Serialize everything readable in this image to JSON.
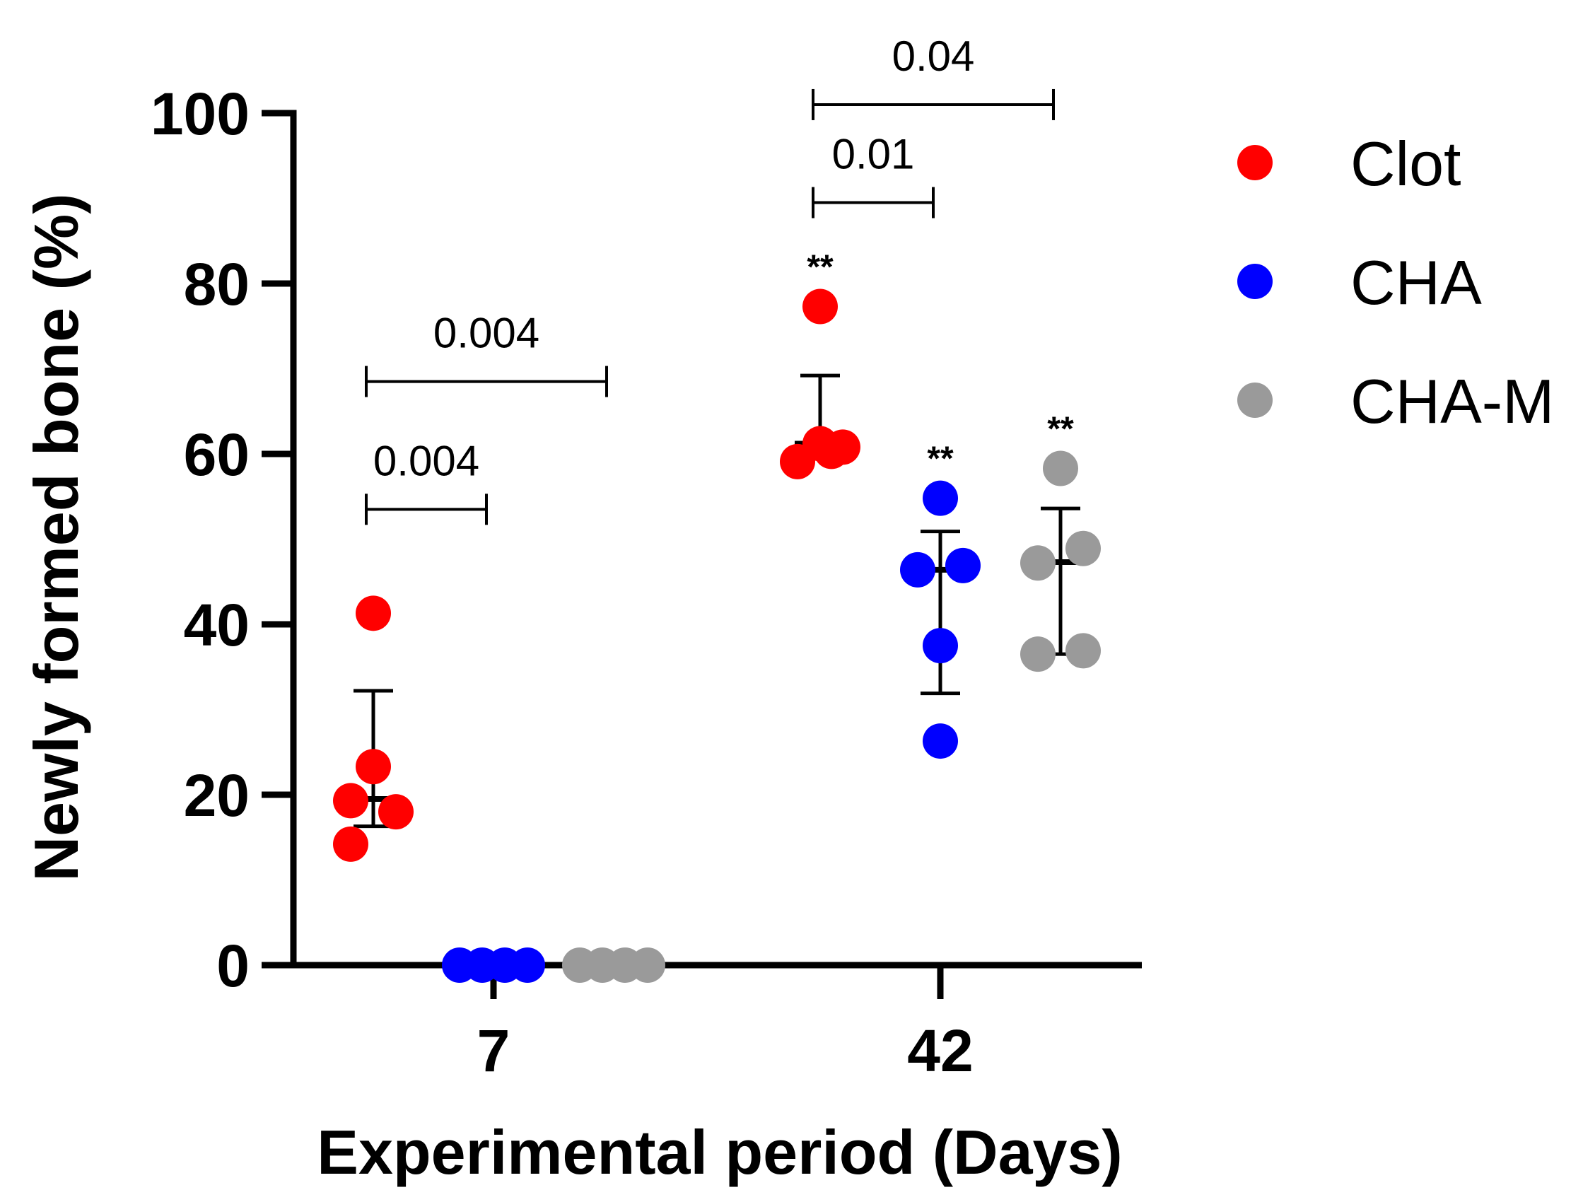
{
  "chart_data": {
    "type": "scatter",
    "title": "",
    "xlabel": "Experimental period (Days)",
    "ylabel": "Newly formed bone (%)",
    "ylim": [
      0,
      100
    ],
    "yticks": [
      0,
      20,
      40,
      60,
      80,
      100
    ],
    "categories": [
      "7",
      "42"
    ],
    "series": [
      {
        "name": "Clot",
        "color": "#ff0000",
        "groups": [
          {
            "category": "7",
            "points": [
              {
                "j": -1,
                "y": 14.2
              },
              {
                "j": -1,
                "y": 19.3
              },
              {
                "j": 0,
                "y": 23.3
              },
              {
                "j": 1,
                "y": 18.0
              },
              {
                "j": 0,
                "y": 41.3
              }
            ],
            "mean": 19.5,
            "err_low": 16.3,
            "err_high": 32.2
          },
          {
            "category": "42",
            "points": [
              {
                "j": -1,
                "y": 59.1
              },
              {
                "j": 0,
                "y": 61.2
              },
              {
                "j": 0.5,
                "y": 60.3
              },
              {
                "j": 1,
                "y": 60.8
              },
              {
                "j": 0,
                "y": 77.3
              }
            ],
            "mean": 61.2,
            "err_low": 61.2,
            "err_high": 69.2,
            "significance": "**"
          }
        ]
      },
      {
        "name": "CHA",
        "color": "#0000ff",
        "groups": [
          {
            "category": "7",
            "points": [
              {
                "j": -1.5,
                "y": 0
              },
              {
                "j": -0.5,
                "y": 0
              },
              {
                "j": 0.5,
                "y": 0
              },
              {
                "j": 1.5,
                "y": 0
              }
            ],
            "mean": 0,
            "err_low": 0,
            "err_high": 0
          },
          {
            "category": "42",
            "points": [
              {
                "j": -1,
                "y": 46.4
              },
              {
                "j": 1,
                "y": 46.9
              },
              {
                "j": 0,
                "y": 54.8
              },
              {
                "j": 0,
                "y": 37.5
              },
              {
                "j": 0,
                "y": 26.3
              }
            ],
            "mean": 46.4,
            "err_low": 31.9,
            "err_high": 50.9,
            "significance": "**"
          }
        ]
      },
      {
        "name": "CHA-M",
        "color": "#9a9a9a",
        "groups": [
          {
            "category": "7",
            "points": [
              {
                "j": -1.5,
                "y": 0
              },
              {
                "j": -0.5,
                "y": 0
              },
              {
                "j": 0.5,
                "y": 0
              },
              {
                "j": 1.5,
                "y": 0
              }
            ],
            "mean": 0,
            "err_low": 0,
            "err_high": 0
          },
          {
            "category": "42",
            "points": [
              {
                "j": -1,
                "y": 47.2
              },
              {
                "j": 1,
                "y": 48.9
              },
              {
                "j": 0,
                "y": 58.3
              },
              {
                "j": -1,
                "y": 36.5
              },
              {
                "j": 1,
                "y": 36.9
              }
            ],
            "mean": 47.3,
            "err_low": 36.5,
            "err_high": 53.6,
            "significance": "**"
          }
        ]
      }
    ],
    "comparisons": [
      {
        "category": "7",
        "from": "Clot",
        "to": "CHA",
        "label": "0.004",
        "level": 0
      },
      {
        "category": "7",
        "from": "Clot",
        "to": "CHA-M",
        "label": "0.004",
        "level": 1
      },
      {
        "category": "42",
        "from": "Clot",
        "to": "CHA",
        "label": "0.01",
        "level": 0
      },
      {
        "category": "42",
        "from": "Clot",
        "to": "CHA-M",
        "label": "0.04",
        "level": 1
      }
    ],
    "legend": [
      "Clot",
      "CHA",
      "CHA-M"
    ],
    "legend_position": "right"
  }
}
